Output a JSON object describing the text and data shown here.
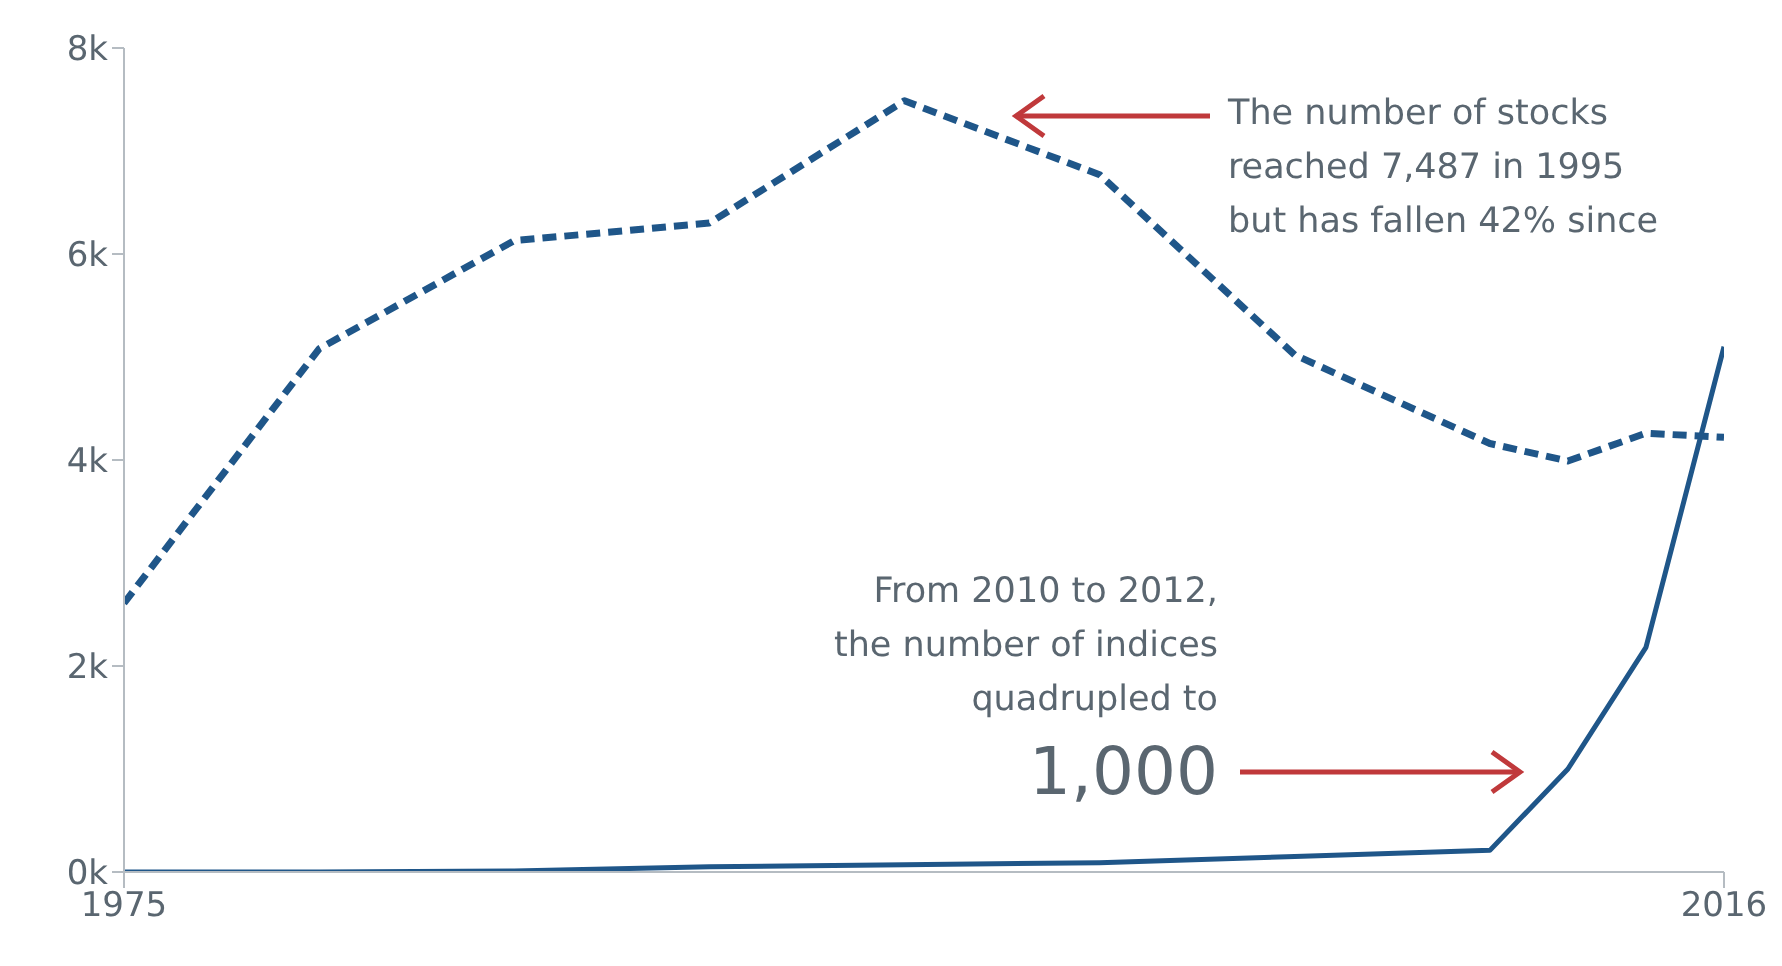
{
  "chart_data": {
    "type": "line",
    "x": [
      1975,
      1980,
      1985,
      1990,
      1995,
      2000,
      2005,
      2010,
      2012,
      2014,
      2016
    ],
    "series": [
      {
        "color": "#1f5689",
        "line_style": "dashed",
        "values": [
          2610,
          5080,
          6130,
          6300,
          7487,
          6770,
          5020,
          4160,
          3990,
          4260,
          4220
        ]
      },
      {
        "color": "#1f5689",
        "line_style": "solid",
        "values": [
          0,
          0,
          10,
          50,
          70,
          90,
          150,
          210,
          1000,
          2180,
          5100
        ]
      }
    ],
    "xlim": [
      1975,
      2016
    ],
    "xticks": [
      1975,
      2016
    ],
    "ylim": [
      0,
      8000
    ],
    "yticks": [
      {
        "value": 0,
        "label": "0k"
      },
      {
        "value": 2000,
        "label": "2k"
      },
      {
        "value": 4000,
        "label": "4k"
      },
      {
        "value": 6000,
        "label": "6k"
      },
      {
        "value": 8000,
        "label": "8k"
      }
    ],
    "grid": false,
    "legend": false,
    "marker": "none",
    "annotations": [
      "The number of stocks\nreached 7,487 in 1995\nbut has fallen 42% since",
      "From 2010 to 2012,\nthe number of indices\nquadrupled to",
      "1,000"
    ]
  }
}
